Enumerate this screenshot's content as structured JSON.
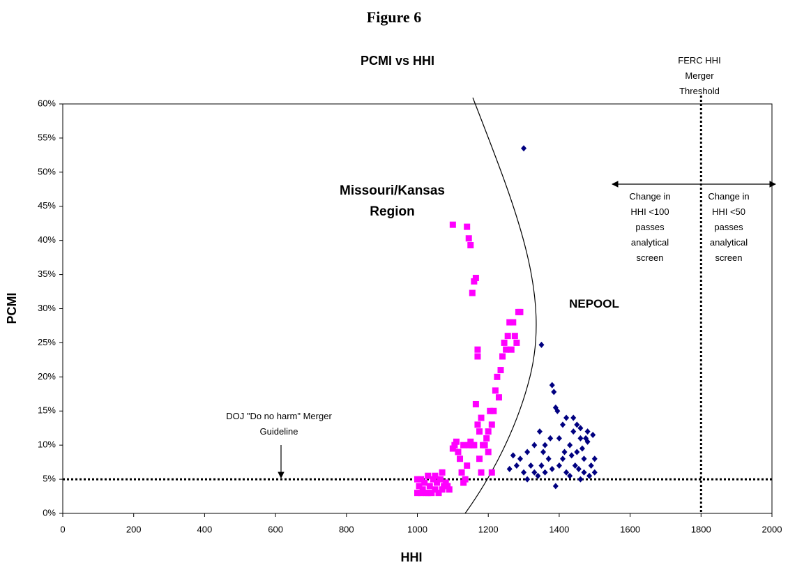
{
  "figure_title": "Figure 6",
  "chart_data": {
    "type": "scatter",
    "title": "PCMI vs HHI",
    "x_label": "HHI",
    "y_label": "PCMI",
    "xlim": [
      0,
      2000
    ],
    "xticks": [
      0,
      200,
      400,
      600,
      800,
      1000,
      1200,
      1400,
      1600,
      1800,
      2000
    ],
    "ylim": [
      0,
      60
    ],
    "yticks": [
      {
        "value": 0,
        "label": "0%"
      },
      {
        "value": 5,
        "label": "5%"
      },
      {
        "value": 10,
        "label": "10%"
      },
      {
        "value": 15,
        "label": "15%"
      },
      {
        "value": 20,
        "label": "20%"
      },
      {
        "value": 25,
        "label": "25%"
      },
      {
        "value": 30,
        "label": "30%"
      },
      {
        "value": 35,
        "label": "35%"
      },
      {
        "value": 40,
        "label": "40%"
      },
      {
        "value": 45,
        "label": "45%"
      },
      {
        "value": 50,
        "label": "50%"
      },
      {
        "value": 55,
        "label": "55%"
      },
      {
        "value": 60,
        "label": "60%"
      }
    ],
    "grid": false,
    "reference_lines": {
      "y": 5,
      "x": 1800
    },
    "annotations": {
      "ferc": "FERC HHI Merger Threshold",
      "left_zone": "Change in HHI <100 passes analytical screen",
      "right_zone": "Change in HHI <50 passes analytical screen",
      "doj": "DOJ \"Do no harm\" Merger Guideline"
    },
    "series": [
      {
        "name": "Missouri/Kansas Region",
        "color": "#ff00ff",
        "marker": "square",
        "x": [
          1000,
          1005,
          1010,
          1015,
          1020,
          1025,
          1030,
          1035,
          1040,
          1045,
          1050,
          1055,
          1060,
          1065,
          1070,
          1075,
          1080,
          1085,
          1090,
          1000,
          1010,
          1030,
          1050,
          1070,
          1100,
          1105,
          1110,
          1115,
          1120,
          1125,
          1130,
          1135,
          1140,
          1145,
          1150,
          1155,
          1160,
          1165,
          1170,
          1175,
          1180,
          1185,
          1190,
          1195,
          1200,
          1205,
          1210,
          1215,
          1220,
          1225,
          1230,
          1235,
          1240,
          1245,
          1250,
          1255,
          1260,
          1265,
          1270,
          1275,
          1280,
          1285,
          1290,
          1100,
          1140,
          1145,
          1150,
          1155,
          1160,
          1165,
          1170,
          1170,
          1200,
          1210,
          1180,
          1175,
          1130
        ],
        "values": [
          3,
          4,
          5,
          3.5,
          4.5,
          3,
          5.5,
          4,
          3,
          5,
          3.5,
          4.5,
          3,
          5,
          3.5,
          4,
          4.5,
          4,
          3.5,
          5,
          3,
          3,
          5.5,
          6,
          9.5,
          10,
          10.5,
          9,
          8,
          6,
          4.5,
          5,
          7,
          10,
          10.5,
          10,
          10,
          16,
          13,
          12,
          14,
          10,
          10,
          11,
          12,
          15,
          13,
          15,
          18,
          20,
          17,
          21,
          23,
          25,
          24,
          26,
          28,
          24,
          28,
          26,
          25,
          29.5,
          29.5,
          42.3,
          42,
          40.3,
          39.3,
          32.3,
          34,
          34.5,
          24,
          23,
          9,
          6,
          6,
          8,
          10
        ]
      },
      {
        "name": "NEPOOL",
        "color": "#000080",
        "marker": "diamond",
        "x": [
          1300,
          1350,
          1380,
          1385,
          1390,
          1395,
          1375,
          1360,
          1330,
          1310,
          1290,
          1280,
          1270,
          1260,
          1300,
          1310,
          1320,
          1330,
          1340,
          1350,
          1360,
          1370,
          1380,
          1390,
          1400,
          1410,
          1420,
          1430,
          1440,
          1450,
          1460,
          1470,
          1480,
          1490,
          1500,
          1410,
          1420,
          1440,
          1450,
          1460,
          1470,
          1480,
          1495,
          1500,
          1430,
          1460,
          1485,
          1400,
          1345,
          1355,
          1415,
          1445,
          1465,
          1475,
          1435,
          1455
        ],
        "values": [
          53.5,
          24.7,
          18.8,
          17.8,
          15.5,
          15,
          11,
          10,
          10,
          9,
          8,
          7,
          8.5,
          6.5,
          6,
          5,
          7,
          6,
          5.5,
          7,
          6,
          8,
          6.5,
          4,
          7,
          8,
          6,
          10,
          12,
          9,
          11,
          8,
          10.5,
          7,
          6,
          13,
          14,
          14,
          13,
          12.5,
          6,
          12,
          11.5,
          8,
          5.5,
          5,
          5.5,
          11,
          12,
          9,
          9,
          7,
          9.5,
          11,
          8.5,
          6.5
        ]
      }
    ]
  }
}
